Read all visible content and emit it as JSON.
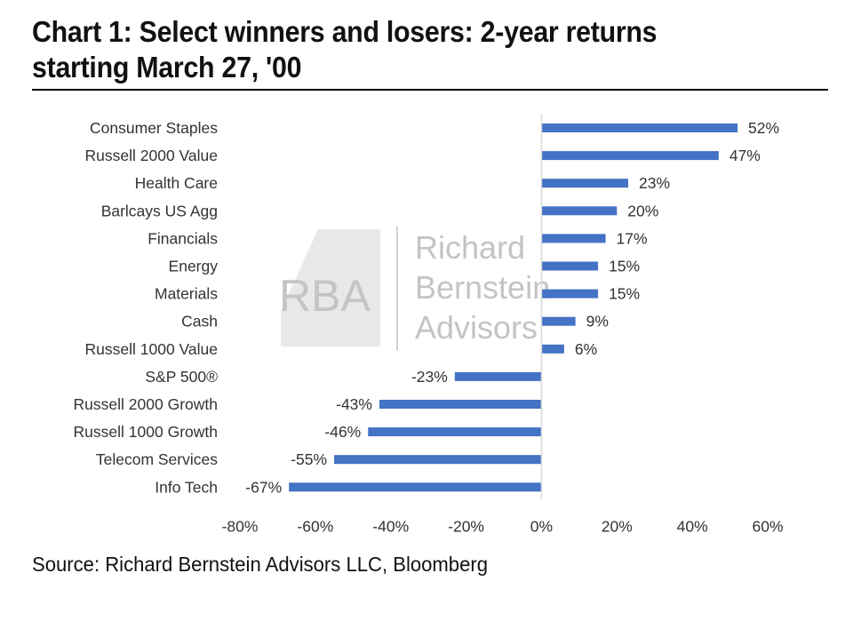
{
  "title": "Chart 1: Select winners and losers: 2-year returns starting March 27, '00",
  "source": "Source: Richard Bernstein Advisors LLC, Bloomberg",
  "watermark": {
    "logo_text": "RBA",
    "name_lines": [
      "Richard",
      "Bernstein",
      "Advisors"
    ],
    "color": "#c4c4c4"
  },
  "chart_data": {
    "type": "bar",
    "orientation": "horizontal",
    "categories": [
      "Consumer Staples",
      "Russell 2000 Value",
      "Health Care",
      "Barlcays US Agg",
      "Financials",
      "Energy",
      "Materials",
      "Cash",
      "Russell 1000 Value",
      "S&P 500®",
      "Russell 2000 Growth",
      "Russell 1000 Growth",
      "Telecom Services",
      "Info Tech"
    ],
    "values": [
      52,
      47,
      23,
      20,
      17,
      15,
      15,
      9,
      6,
      -23,
      -43,
      -46,
      -55,
      -67
    ],
    "value_labels": [
      "52%",
      "47%",
      "23%",
      "20%",
      "17%",
      "15%",
      "15%",
      "9%",
      "6%",
      "-23%",
      "-43%",
      "-46%",
      "-55%",
      "-67%"
    ],
    "xlim": [
      -80,
      60
    ],
    "xticks": [
      -80,
      -60,
      -40,
      -20,
      0,
      20,
      40,
      60
    ],
    "xtick_labels": [
      "-80%",
      "-60%",
      "-40%",
      "-20%",
      "0%",
      "20%",
      "40%",
      "60%"
    ],
    "bar_color": "#4472c4",
    "axis_color": "#d9d9d9",
    "grid": false,
    "legend": "none"
  }
}
